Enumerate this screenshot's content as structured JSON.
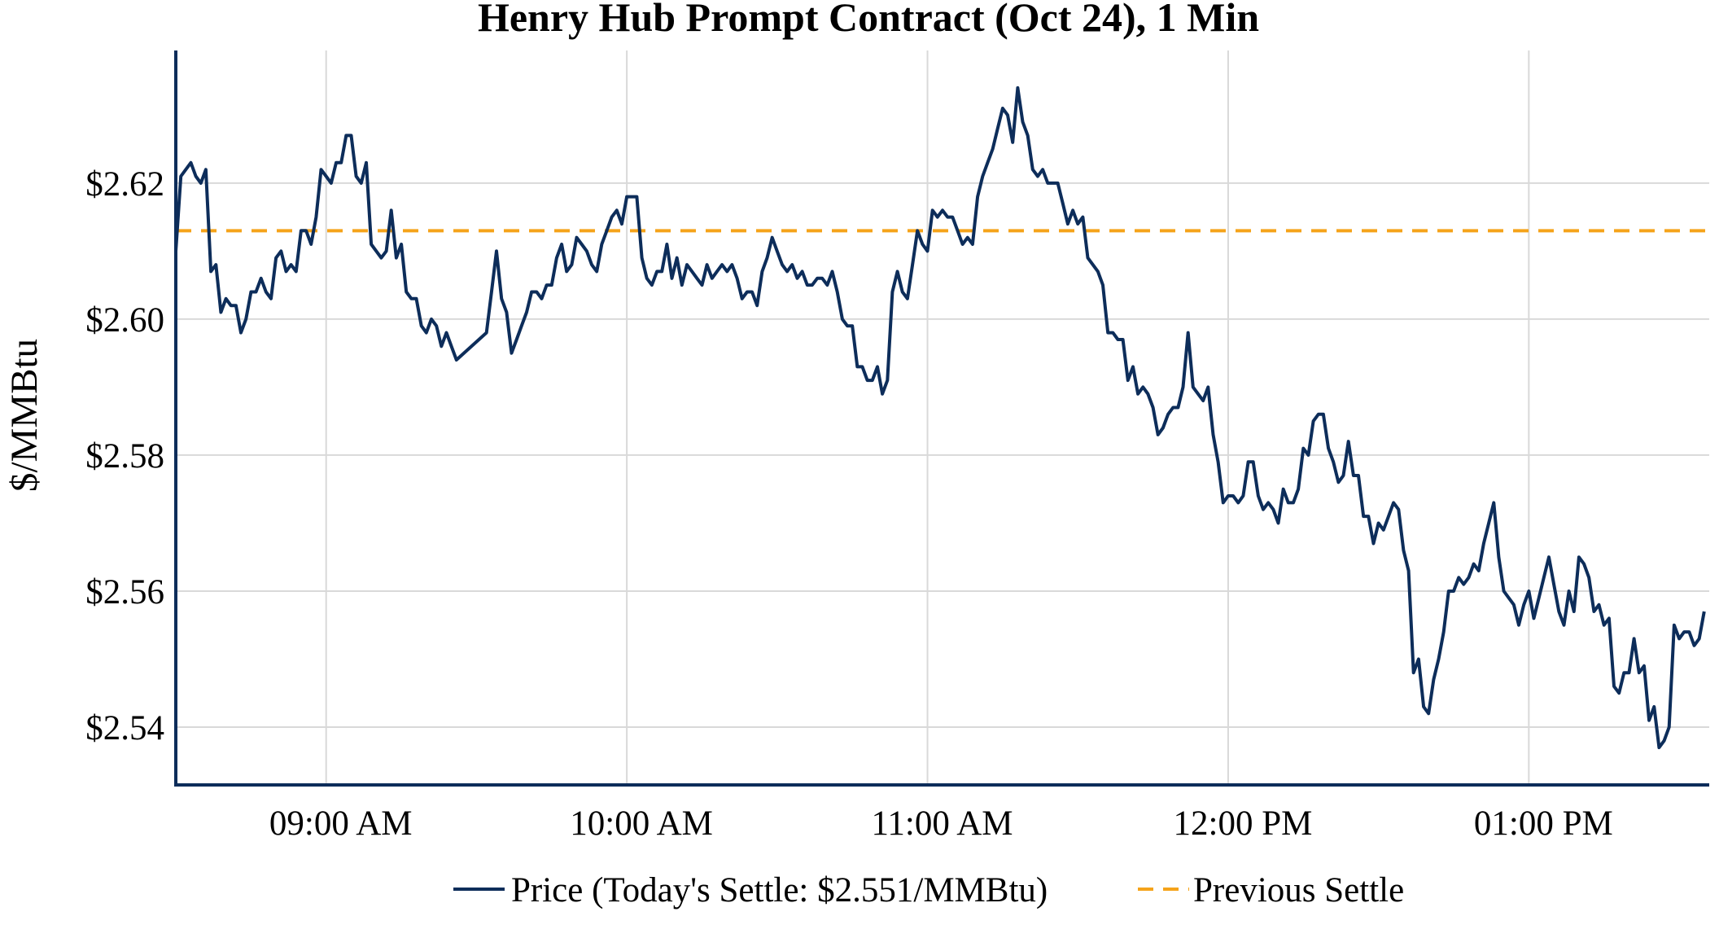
{
  "chart_data": {
    "type": "line",
    "title": "Henry Hub Prompt Contract (Oct 24), 1 Min",
    "ylabel": "$/MMBtu",
    "xlabel": "",
    "x_range_minutes": [
      510,
      816
    ],
    "ylim": [
      2.5315,
      2.6395
    ],
    "y_ticks": [
      {
        "value": 2.54,
        "label": "$2.54"
      },
      {
        "value": 2.56,
        "label": "$2.56"
      },
      {
        "value": 2.58,
        "label": "$2.58"
      },
      {
        "value": 2.6,
        "label": "$2.60"
      },
      {
        "value": 2.62,
        "label": "$2.62"
      }
    ],
    "x_ticks": [
      {
        "value": 540,
        "label": "09:00 AM"
      },
      {
        "value": 600,
        "label": "10:00 AM"
      },
      {
        "value": 660,
        "label": "11:00 AM"
      },
      {
        "value": 720,
        "label": "12:00 PM"
      },
      {
        "value": 780,
        "label": "01:00 PM"
      }
    ],
    "grid": true,
    "legend_position": "bottom-center",
    "colors": {
      "price": "#0d2d5a",
      "previous_settle": "#f5a31a",
      "grid": "#d9d9d9",
      "axis": "#0d2d5a"
    },
    "previous_settle": 2.613,
    "series": [
      {
        "name": "Price (Today's Settle: $2.551/MMBtu)",
        "points": [
          [
            510,
            2.61
          ],
          [
            511,
            2.621
          ],
          [
            512,
            2.622
          ],
          [
            513,
            2.623
          ],
          [
            514,
            2.621
          ],
          [
            515,
            2.62
          ],
          [
            516,
            2.622
          ],
          [
            517,
            2.607
          ],
          [
            518,
            2.608
          ],
          [
            519,
            2.601
          ],
          [
            520,
            2.603
          ],
          [
            521,
            2.602
          ],
          [
            522,
            2.602
          ],
          [
            523,
            2.598
          ],
          [
            524,
            2.6
          ],
          [
            525,
            2.604
          ],
          [
            526,
            2.604
          ],
          [
            527,
            2.606
          ],
          [
            528,
            2.604
          ],
          [
            529,
            2.603
          ],
          [
            530,
            2.609
          ],
          [
            531,
            2.61
          ],
          [
            532,
            2.607
          ],
          [
            533,
            2.608
          ],
          [
            534,
            2.607
          ],
          [
            535,
            2.613
          ],
          [
            536,
            2.613
          ],
          [
            537,
            2.611
          ],
          [
            538,
            2.615
          ],
          [
            539,
            2.622
          ],
          [
            540,
            2.621
          ],
          [
            541,
            2.62
          ],
          [
            542,
            2.623
          ],
          [
            543,
            2.623
          ],
          [
            544,
            2.627
          ],
          [
            545,
            2.627
          ],
          [
            546,
            2.621
          ],
          [
            547,
            2.62
          ],
          [
            548,
            2.623
          ],
          [
            549,
            2.611
          ],
          [
            550,
            2.61
          ],
          [
            551,
            2.609
          ],
          [
            552,
            2.61
          ],
          [
            553,
            2.616
          ],
          [
            554,
            2.609
          ],
          [
            555,
            2.611
          ],
          [
            556,
            2.604
          ],
          [
            557,
            2.603
          ],
          [
            558,
            2.603
          ],
          [
            559,
            2.599
          ],
          [
            560,
            2.598
          ],
          [
            561,
            2.6
          ],
          [
            562,
            2.599
          ],
          [
            563,
            2.596
          ],
          [
            564,
            2.598
          ],
          [
            565,
            2.596
          ],
          [
            566,
            2.594
          ],
          [
            572,
            2.598
          ],
          [
            573,
            2.604
          ],
          [
            574,
            2.61
          ],
          [
            575,
            2.603
          ],
          [
            576,
            2.601
          ],
          [
            577,
            2.595
          ],
          [
            578,
            2.597
          ],
          [
            579,
            2.599
          ],
          [
            580,
            2.601
          ],
          [
            581,
            2.604
          ],
          [
            582,
            2.604
          ],
          [
            583,
            2.603
          ],
          [
            584,
            2.605
          ],
          [
            585,
            2.605
          ],
          [
            586,
            2.609
          ],
          [
            587,
            2.611
          ],
          [
            588,
            2.607
          ],
          [
            589,
            2.608
          ],
          [
            590,
            2.612
          ],
          [
            591,
            2.611
          ],
          [
            592,
            2.61
          ],
          [
            593,
            2.608
          ],
          [
            594,
            2.607
          ],
          [
            595,
            2.611
          ],
          [
            596,
            2.613
          ],
          [
            597,
            2.615
          ],
          [
            598,
            2.616
          ],
          [
            599,
            2.614
          ],
          [
            600,
            2.618
          ],
          [
            601,
            2.618
          ],
          [
            602,
            2.618
          ],
          [
            603,
            2.609
          ],
          [
            604,
            2.606
          ],
          [
            605,
            2.605
          ],
          [
            606,
            2.607
          ],
          [
            607,
            2.607
          ],
          [
            608,
            2.611
          ],
          [
            609,
            2.606
          ],
          [
            610,
            2.609
          ],
          [
            611,
            2.605
          ],
          [
            612,
            2.608
          ],
          [
            613,
            2.607
          ],
          [
            614,
            2.606
          ],
          [
            615,
            2.605
          ],
          [
            616,
            2.608
          ],
          [
            617,
            2.606
          ],
          [
            618,
            2.607
          ],
          [
            619,
            2.608
          ],
          [
            620,
            2.607
          ],
          [
            621,
            2.608
          ],
          [
            622,
            2.606
          ],
          [
            623,
            2.603
          ],
          [
            624,
            2.604
          ],
          [
            625,
            2.604
          ],
          [
            626,
            2.602
          ],
          [
            627,
            2.607
          ],
          [
            628,
            2.609
          ],
          [
            629,
            2.612
          ],
          [
            630,
            2.61
          ],
          [
            631,
            2.608
          ],
          [
            632,
            2.607
          ],
          [
            633,
            2.608
          ],
          [
            634,
            2.606
          ],
          [
            635,
            2.607
          ],
          [
            636,
            2.605
          ],
          [
            637,
            2.605
          ],
          [
            638,
            2.606
          ],
          [
            639,
            2.606
          ],
          [
            640,
            2.605
          ],
          [
            641,
            2.607
          ],
          [
            642,
            2.604
          ],
          [
            643,
            2.6
          ],
          [
            644,
            2.599
          ],
          [
            645,
            2.599
          ],
          [
            646,
            2.593
          ],
          [
            647,
            2.593
          ],
          [
            648,
            2.591
          ],
          [
            649,
            2.591
          ],
          [
            650,
            2.593
          ],
          [
            651,
            2.589
          ],
          [
            652,
            2.591
          ],
          [
            653,
            2.604
          ],
          [
            654,
            2.607
          ],
          [
            655,
            2.604
          ],
          [
            656,
            2.603
          ],
          [
            657,
            2.608
          ],
          [
            658,
            2.613
          ],
          [
            659,
            2.611
          ],
          [
            660,
            2.61
          ],
          [
            661,
            2.616
          ],
          [
            662,
            2.615
          ],
          [
            663,
            2.616
          ],
          [
            664,
            2.615
          ],
          [
            665,
            2.615
          ],
          [
            666,
            2.613
          ],
          [
            667,
            2.611
          ],
          [
            668,
            2.612
          ],
          [
            669,
            2.611
          ],
          [
            670,
            2.618
          ],
          [
            671,
            2.621
          ],
          [
            672,
            2.623
          ],
          [
            673,
            2.625
          ],
          [
            674,
            2.628
          ],
          [
            675,
            2.631
          ],
          [
            676,
            2.63
          ],
          [
            677,
            2.626
          ],
          [
            678,
            2.634
          ],
          [
            679,
            2.629
          ],
          [
            680,
            2.627
          ],
          [
            681,
            2.622
          ],
          [
            682,
            2.621
          ],
          [
            683,
            2.622
          ],
          [
            684,
            2.62
          ],
          [
            685,
            2.62
          ],
          [
            686,
            2.62
          ],
          [
            687,
            2.617
          ],
          [
            688,
            2.614
          ],
          [
            689,
            2.616
          ],
          [
            690,
            2.614
          ],
          [
            691,
            2.615
          ],
          [
            692,
            2.609
          ],
          [
            693,
            2.608
          ],
          [
            694,
            2.607
          ],
          [
            695,
            2.605
          ],
          [
            696,
            2.598
          ],
          [
            697,
            2.598
          ],
          [
            698,
            2.597
          ],
          [
            699,
            2.597
          ],
          [
            700,
            2.591
          ],
          [
            701,
            2.593
          ],
          [
            702,
            2.589
          ],
          [
            703,
            2.59
          ],
          [
            704,
            2.589
          ],
          [
            705,
            2.587
          ],
          [
            706,
            2.583
          ],
          [
            707,
            2.584
          ],
          [
            708,
            2.586
          ],
          [
            709,
            2.587
          ],
          [
            710,
            2.587
          ],
          [
            711,
            2.59
          ],
          [
            712,
            2.598
          ],
          [
            713,
            2.59
          ],
          [
            714,
            2.589
          ],
          [
            715,
            2.588
          ],
          [
            716,
            2.59
          ],
          [
            717,
            2.583
          ],
          [
            718,
            2.579
          ],
          [
            719,
            2.573
          ],
          [
            720,
            2.574
          ],
          [
            721,
            2.574
          ],
          [
            722,
            2.573
          ],
          [
            723,
            2.574
          ],
          [
            724,
            2.579
          ],
          [
            725,
            2.579
          ],
          [
            726,
            2.574
          ],
          [
            727,
            2.572
          ],
          [
            728,
            2.573
          ],
          [
            729,
            2.572
          ],
          [
            730,
            2.57
          ],
          [
            731,
            2.575
          ],
          [
            732,
            2.573
          ],
          [
            733,
            2.573
          ],
          [
            734,
            2.575
          ],
          [
            735,
            2.581
          ],
          [
            736,
            2.58
          ],
          [
            737,
            2.585
          ],
          [
            738,
            2.586
          ],
          [
            739,
            2.586
          ],
          [
            740,
            2.581
          ],
          [
            741,
            2.579
          ],
          [
            742,
            2.576
          ],
          [
            743,
            2.577
          ],
          [
            744,
            2.582
          ],
          [
            745,
            2.577
          ],
          [
            746,
            2.577
          ],
          [
            747,
            2.571
          ],
          [
            748,
            2.571
          ],
          [
            749,
            2.567
          ],
          [
            750,
            2.57
          ],
          [
            751,
            2.569
          ],
          [
            752,
            2.571
          ],
          [
            753,
            2.573
          ],
          [
            754,
            2.572
          ],
          [
            755,
            2.566
          ],
          [
            756,
            2.563
          ],
          [
            757,
            2.548
          ],
          [
            758,
            2.55
          ],
          [
            759,
            2.543
          ],
          [
            760,
            2.542
          ],
          [
            761,
            2.547
          ],
          [
            762,
            2.55
          ],
          [
            763,
            2.554
          ],
          [
            764,
            2.56
          ],
          [
            765,
            2.56
          ],
          [
            766,
            2.562
          ],
          [
            767,
            2.561
          ],
          [
            768,
            2.562
          ],
          [
            769,
            2.564
          ],
          [
            770,
            2.563
          ],
          [
            771,
            2.567
          ],
          [
            772,
            2.57
          ],
          [
            773,
            2.573
          ],
          [
            774,
            2.565
          ],
          [
            775,
            2.56
          ],
          [
            776,
            2.559
          ],
          [
            777,
            2.558
          ],
          [
            778,
            2.555
          ],
          [
            779,
            2.558
          ],
          [
            780,
            2.56
          ],
          [
            781,
            2.556
          ],
          [
            782,
            2.559
          ],
          [
            783,
            2.562
          ],
          [
            784,
            2.565
          ],
          [
            785,
            2.561
          ],
          [
            786,
            2.557
          ],
          [
            787,
            2.555
          ],
          [
            788,
            2.56
          ],
          [
            789,
            2.557
          ],
          [
            790,
            2.565
          ],
          [
            791,
            2.564
          ],
          [
            792,
            2.562
          ],
          [
            793,
            2.557
          ],
          [
            794,
            2.558
          ],
          [
            795,
            2.555
          ],
          [
            796,
            2.556
          ],
          [
            797,
            2.546
          ],
          [
            798,
            2.545
          ],
          [
            799,
            2.548
          ],
          [
            800,
            2.548
          ],
          [
            801,
            2.553
          ],
          [
            802,
            2.548
          ],
          [
            803,
            2.549
          ],
          [
            804,
            2.541
          ],
          [
            805,
            2.543
          ],
          [
            806,
            2.537
          ],
          [
            807,
            2.538
          ],
          [
            808,
            2.54
          ],
          [
            809,
            2.555
          ],
          [
            810,
            2.553
          ],
          [
            811,
            2.554
          ],
          [
            812,
            2.554
          ],
          [
            813,
            2.552
          ],
          [
            814,
            2.553
          ],
          [
            815,
            2.557
          ]
        ]
      },
      {
        "name": "Previous Settle",
        "value": 2.613
      }
    ]
  }
}
